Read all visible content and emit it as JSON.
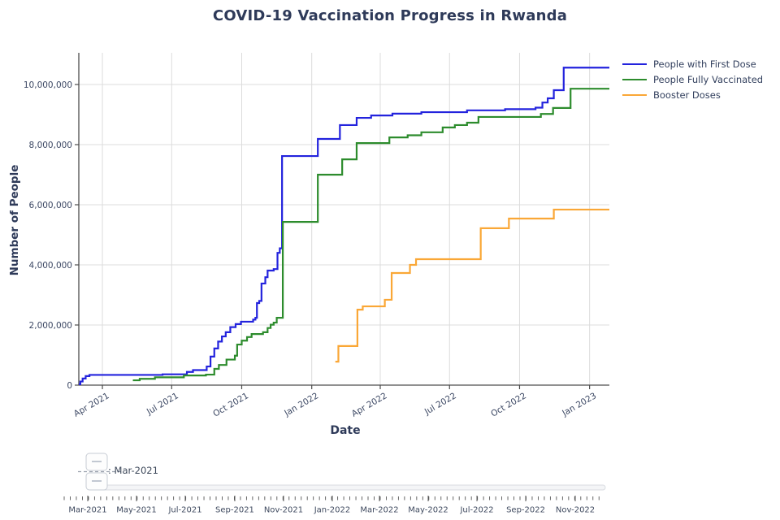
{
  "title": "COVID-19 Vaccination Progress in Rwanda",
  "chart_data": {
    "type": "line",
    "subtype": "step-after",
    "title": "COVID-19 Vaccination Progress in Rwanda",
    "xlabel": "Date",
    "ylabel": "Number of People",
    "grid": true,
    "legend_position": "top-right-outside",
    "x_epoch": "2021-03-01",
    "xlim_days": [
      0,
      697
    ],
    "ylim": [
      0,
      11000000
    ],
    "x_tick_labels": [
      "Apr 2021",
      "Jul 2021",
      "Oct 2021",
      "Jan 2022",
      "Apr 2022",
      "Jul 2022",
      "Oct 2022",
      "Jan 2023"
    ],
    "x_tick_days": [
      31,
      122,
      214,
      306,
      396,
      487,
      579,
      671
    ],
    "y_tick_values": [
      0,
      2000000,
      4000000,
      6000000,
      8000000,
      10000000
    ],
    "y_tick_labels": [
      "0",
      "2,000,000",
      "4,000,000",
      "6,000,000",
      "8,000,000",
      "10,000,000"
    ],
    "series": [
      {
        "name": "People with First Dose",
        "color": "#2323dd",
        "points": [
          [
            0,
            30000
          ],
          [
            2,
            120000
          ],
          [
            5,
            220000
          ],
          [
            9,
            300000
          ],
          [
            14,
            340000
          ],
          [
            110,
            360000
          ],
          [
            142,
            440000
          ],
          [
            150,
            500000
          ],
          [
            168,
            620000
          ],
          [
            173,
            950000
          ],
          [
            178,
            1220000
          ],
          [
            183,
            1450000
          ],
          [
            188,
            1620000
          ],
          [
            193,
            1760000
          ],
          [
            199,
            1930000
          ],
          [
            206,
            2030000
          ],
          [
            213,
            2110000
          ],
          [
            229,
            2180000
          ],
          [
            232,
            2240000
          ],
          [
            234,
            2730000
          ],
          [
            237,
            2800000
          ],
          [
            240,
            3380000
          ],
          [
            245,
            3590000
          ],
          [
            248,
            3810000
          ],
          [
            256,
            3860000
          ],
          [
            261,
            4400000
          ],
          [
            264,
            4550000
          ],
          [
            267,
            7620000
          ],
          [
            314,
            8190000
          ],
          [
            343,
            8650000
          ],
          [
            365,
            8890000
          ],
          [
            384,
            8970000
          ],
          [
            412,
            9030000
          ],
          [
            450,
            9080000
          ],
          [
            510,
            9140000
          ],
          [
            560,
            9180000
          ],
          [
            600,
            9230000
          ],
          [
            609,
            9400000
          ],
          [
            616,
            9540000
          ],
          [
            624,
            9810000
          ],
          [
            637,
            10560000
          ],
          [
            697,
            10560000
          ]
        ]
      },
      {
        "name": "People Fully Vaccinated",
        "color": "#2d8c2d",
        "points": [
          [
            71,
            160000
          ],
          [
            80,
            210000
          ],
          [
            100,
            260000
          ],
          [
            138,
            320000
          ],
          [
            167,
            350000
          ],
          [
            178,
            540000
          ],
          [
            184,
            670000
          ],
          [
            194,
            850000
          ],
          [
            205,
            980000
          ],
          [
            208,
            1350000
          ],
          [
            214,
            1480000
          ],
          [
            221,
            1600000
          ],
          [
            227,
            1700000
          ],
          [
            242,
            1760000
          ],
          [
            248,
            1900000
          ],
          [
            252,
            2010000
          ],
          [
            256,
            2080000
          ],
          [
            260,
            2240000
          ],
          [
            268,
            5430000
          ],
          [
            314,
            7000000
          ],
          [
            346,
            7510000
          ],
          [
            365,
            8050000
          ],
          [
            408,
            8240000
          ],
          [
            432,
            8310000
          ],
          [
            450,
            8410000
          ],
          [
            478,
            8570000
          ],
          [
            494,
            8650000
          ],
          [
            510,
            8730000
          ],
          [
            525,
            8920000
          ],
          [
            607,
            9020000
          ],
          [
            623,
            9220000
          ],
          [
            646,
            9860000
          ],
          [
            697,
            9860000
          ]
        ]
      },
      {
        "name": "Booster Doses",
        "color": "#faa736",
        "points": [
          [
            337,
            780000
          ],
          [
            341,
            1300000
          ],
          [
            366,
            2510000
          ],
          [
            373,
            2620000
          ],
          [
            402,
            2840000
          ],
          [
            411,
            3730000
          ],
          [
            435,
            4000000
          ],
          [
            443,
            4190000
          ],
          [
            528,
            5220000
          ],
          [
            565,
            5540000
          ],
          [
            624,
            5840000
          ],
          [
            697,
            5840000
          ]
        ]
      }
    ]
  },
  "slider": {
    "value": "Mar-2021",
    "value_label": ": Mar-2021",
    "tick_labels": [
      "Mar-2021",
      "May-2021",
      "Jul-2021",
      "Sep-2021",
      "Nov-2021",
      "Jan-2022",
      "Mar-2022",
      "May-2022",
      "Jul-2022",
      "Sep-2022",
      "Nov-2022"
    ],
    "tick_days": [
      0,
      61,
      122,
      184,
      245,
      306,
      365,
      426,
      487,
      548,
      610
    ]
  }
}
